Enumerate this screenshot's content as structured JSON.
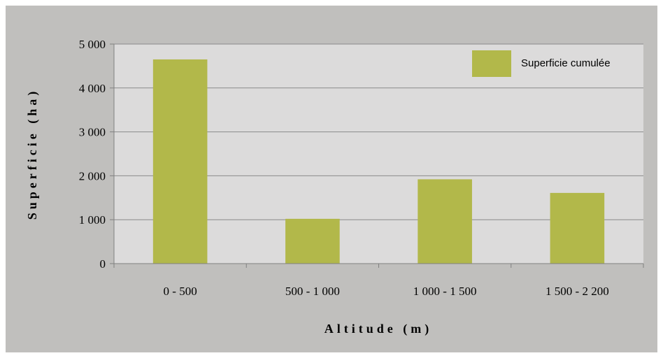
{
  "chart_data": {
    "type": "bar",
    "categories": [
      "0 - 500",
      "500 - 1 000",
      "1 000 - 1 500",
      "1 500 - 2 200"
    ],
    "series": [
      {
        "name": "Superficie cumulée",
        "values": [
          4650,
          1020,
          1920,
          1610
        ],
        "color": "#b2b84a"
      }
    ],
    "xlabel": "Altitude (m)",
    "ylabel": "Superficie (ha)",
    "ylim": [
      0,
      5000
    ],
    "yticks": [
      0,
      1000,
      2000,
      3000,
      4000,
      5000
    ],
    "ytick_labels": [
      "0",
      "1 000",
      "2 000",
      "3 000",
      "4 000",
      "5 000"
    ],
    "grid": true,
    "legend_position": "top-right",
    "plot_background": "#dcdbdb",
    "frame_background": "#c0bfbd"
  }
}
